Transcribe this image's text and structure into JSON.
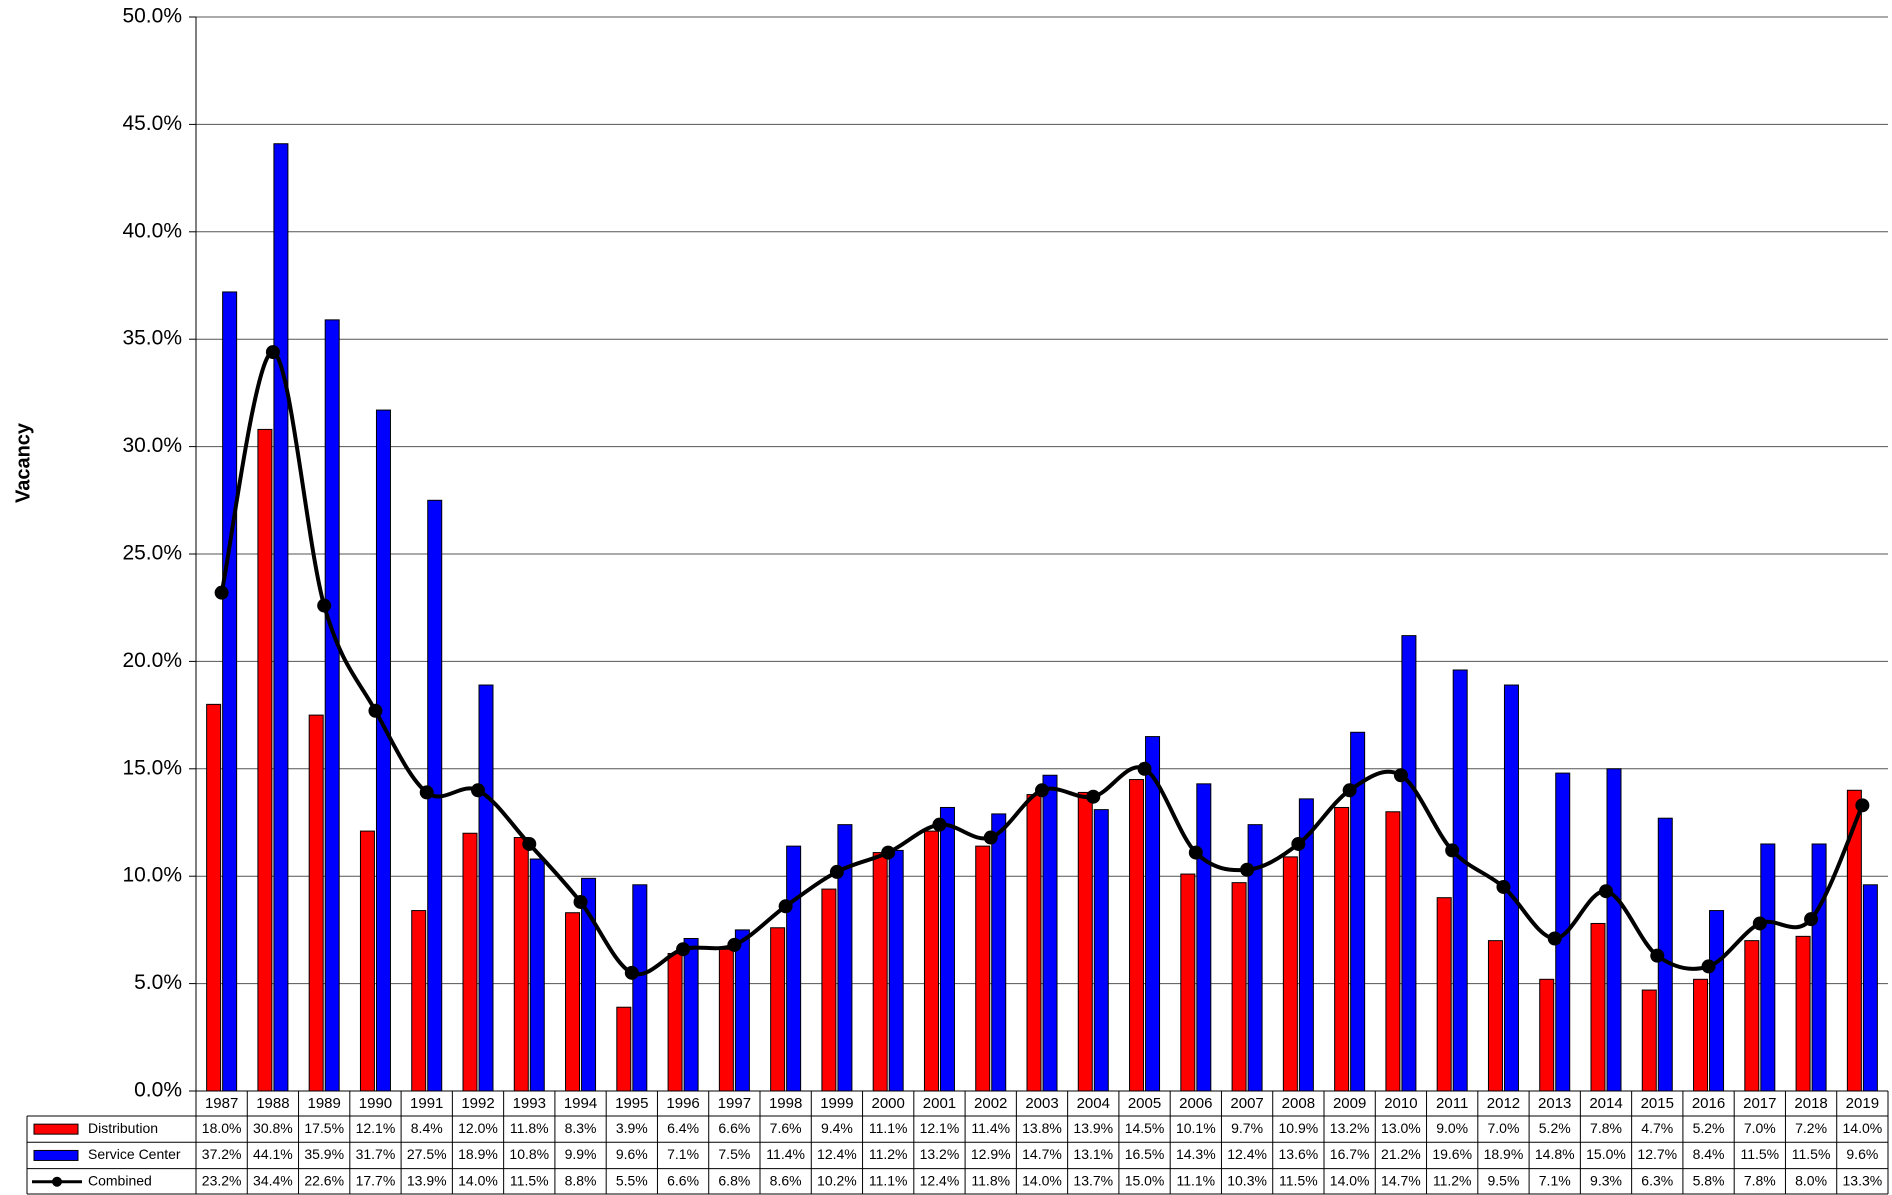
{
  "chart_data": {
    "type": "bar-line",
    "y_label": "Vacancy",
    "categories": [
      "1987",
      "1988",
      "1989",
      "1990",
      "1991",
      "1992",
      "1993",
      "1994",
      "1995",
      "1996",
      "1997",
      "1998",
      "1999",
      "2000",
      "2001",
      "2002",
      "2003",
      "2004",
      "2005",
      "2006",
      "2007",
      "2008",
      "2009",
      "2010",
      "2011",
      "2012",
      "2013",
      "2014",
      "2015",
      "2016",
      "2017",
      "2018",
      "2019"
    ],
    "ylim": [
      0,
      50
    ],
    "yticks": [
      {
        "value": 0,
        "label": "0.0%"
      },
      {
        "value": 5,
        "label": "5.0%"
      },
      {
        "value": 10,
        "label": "10.0%"
      },
      {
        "value": 15,
        "label": "15.0%"
      },
      {
        "value": 20,
        "label": "20.0%"
      },
      {
        "value": 25,
        "label": "25.0%"
      },
      {
        "value": 30,
        "label": "30.0%"
      },
      {
        "value": 35,
        "label": "35.0%"
      },
      {
        "value": 40,
        "label": "40.0%"
      },
      {
        "value": 45,
        "label": "45.0%"
      },
      {
        "value": 50,
        "label": "50.0%"
      }
    ],
    "grid": true,
    "series": [
      {
        "name": "Distribution",
        "kind": "bar",
        "color": "#ff0000",
        "values": [
          18.0,
          30.8,
          17.5,
          12.1,
          8.4,
          12.0,
          11.8,
          8.3,
          3.9,
          6.4,
          6.6,
          7.6,
          9.4,
          11.1,
          12.1,
          11.4,
          13.8,
          13.9,
          14.5,
          10.1,
          9.7,
          10.9,
          13.2,
          13.0,
          9.0,
          7.0,
          5.2,
          7.8,
          4.7,
          5.2,
          7.0,
          7.2,
          14.0
        ],
        "value_labels": [
          "18.0%",
          "30.8%",
          "17.5%",
          "12.1%",
          "8.4%",
          "12.0%",
          "11.8%",
          "8.3%",
          "3.9%",
          "6.4%",
          "6.6%",
          "7.6%",
          "9.4%",
          "11.1%",
          "12.1%",
          "11.4%",
          "13.8%",
          "13.9%",
          "14.5%",
          "10.1%",
          "9.7%",
          "10.9%",
          "13.2%",
          "13.0%",
          "9.0%",
          "7.0%",
          "5.2%",
          "7.8%",
          "4.7%",
          "5.2%",
          "7.0%",
          "7.2%",
          "14.0%"
        ]
      },
      {
        "name": "Service Center",
        "kind": "bar",
        "color": "#0000ff",
        "values": [
          37.2,
          44.1,
          35.9,
          31.7,
          27.5,
          18.9,
          10.8,
          9.9,
          9.6,
          7.1,
          7.5,
          11.4,
          12.4,
          11.2,
          13.2,
          12.9,
          14.7,
          13.1,
          16.5,
          14.3,
          12.4,
          13.6,
          16.7,
          21.2,
          19.6,
          18.9,
          14.8,
          15.0,
          12.7,
          8.4,
          11.5,
          11.5,
          9.6
        ],
        "value_labels": [
          "37.2%",
          "44.1%",
          "35.9%",
          "31.7%",
          "27.5%",
          "18.9%",
          "10.8%",
          "9.9%",
          "9.6%",
          "7.1%",
          "7.5%",
          "11.4%",
          "12.4%",
          "11.2%",
          "13.2%",
          "12.9%",
          "14.7%",
          "13.1%",
          "16.5%",
          "14.3%",
          "12.4%",
          "13.6%",
          "16.7%",
          "21.2%",
          "19.6%",
          "18.9%",
          "14.8%",
          "15.0%",
          "12.7%",
          "8.4%",
          "11.5%",
          "11.5%",
          "9.6%"
        ]
      },
      {
        "name": "Combined",
        "kind": "line",
        "color": "#000000",
        "values": [
          23.2,
          34.4,
          22.6,
          17.7,
          13.9,
          14.0,
          11.5,
          8.8,
          5.5,
          6.6,
          6.8,
          8.6,
          10.2,
          11.1,
          12.4,
          11.8,
          14.0,
          13.7,
          15.0,
          11.1,
          10.3,
          11.5,
          14.0,
          14.7,
          11.2,
          9.5,
          7.1,
          9.3,
          6.3,
          5.8,
          7.8,
          8.0,
          13.3
        ],
        "value_labels": [
          "23.2%",
          "34.4%",
          "22.6%",
          "17.7%",
          "13.9%",
          "14.0%",
          "11.5%",
          "8.8%",
          "5.5%",
          "6.6%",
          "6.8%",
          "8.6%",
          "10.2%",
          "11.1%",
          "12.4%",
          "11.8%",
          "14.0%",
          "13.7%",
          "15.0%",
          "11.1%",
          "10.3%",
          "11.5%",
          "14.0%",
          "14.7%",
          "11.2%",
          "9.5%",
          "7.1%",
          "9.3%",
          "6.3%",
          "5.8%",
          "7.8%",
          "8.0%",
          "13.3%"
        ]
      }
    ]
  }
}
